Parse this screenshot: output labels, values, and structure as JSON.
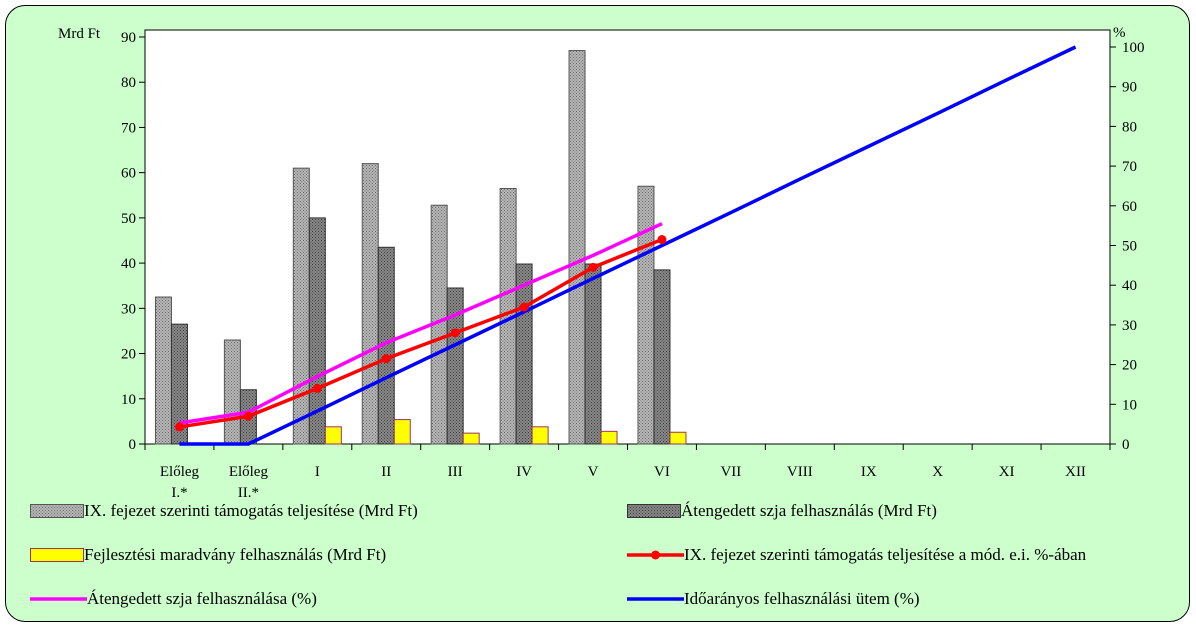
{
  "chart_data": {
    "type": "bar",
    "categories": [
      "Előleg I.*",
      "Előleg II.*",
      "I",
      "II",
      "III",
      "IV",
      "V",
      "VI",
      "VII",
      "VIII",
      "IX",
      "X",
      "XI",
      "XII"
    ],
    "y_left": {
      "label": "Mrd Ft",
      "min": 0,
      "max": 90,
      "ticks": [
        0,
        10,
        20,
        30,
        40,
        50,
        60,
        70,
        80,
        90
      ]
    },
    "y_right": {
      "label": "%",
      "min": 0,
      "max": 100,
      "ticks": [
        0,
        10,
        20,
        30,
        40,
        50,
        60,
        70,
        80,
        90,
        100
      ]
    },
    "bar_series": [
      {
        "name": "IX. fejezet szerinti támogatás teljesítése (Mrd Ft)",
        "axis": "left",
        "color": "#a0a0a0",
        "values": [
          32.5,
          23,
          61,
          62,
          52.8,
          56.5,
          87,
          57,
          null,
          null,
          null,
          null,
          null,
          null
        ]
      },
      {
        "name": "Átengedett szja felhasználás (Mrd Ft)",
        "axis": "left",
        "color": "#777777",
        "values": [
          26.5,
          12,
          50,
          43.5,
          34.5,
          39.8,
          39.8,
          38.5,
          null,
          null,
          null,
          null,
          null,
          null
        ]
      },
      {
        "name": "Fejlesztési maradvány felhasználás (Mrd Ft)",
        "axis": "left",
        "color": "#ffff00",
        "values": [
          null,
          null,
          3.8,
          5.4,
          2.4,
          3.8,
          2.8,
          2.6,
          null,
          null,
          null,
          null,
          null,
          null
        ]
      }
    ],
    "line_series": [
      {
        "name": "IX. fejezet szerinti támogatás teljesítése a mód. e.i. %-ában",
        "axis": "right",
        "color": "#ff0000",
        "markers": true,
        "values": [
          4.3,
          7,
          14,
          21.5,
          28,
          34.5,
          44.5,
          51.5,
          null,
          null,
          null,
          null,
          null,
          null
        ]
      },
      {
        "name": "Átengedett szja felhasználása (%)",
        "axis": "right",
        "color": "#ff00ff",
        "markers": false,
        "values": [
          5.3,
          8,
          17,
          25.5,
          32.5,
          40,
          47.5,
          55.5,
          null,
          null,
          null,
          null,
          null,
          null
        ]
      },
      {
        "name": "Időarányos felhasználási ütem (%)",
        "axis": "right",
        "color": "#0000ff",
        "markers": false,
        "values": [
          0,
          0,
          8.3,
          16.7,
          25,
          33.3,
          41.7,
          50,
          58.3,
          66.7,
          75,
          83.3,
          91.7,
          100
        ]
      }
    ],
    "legend_position": "bottom"
  }
}
